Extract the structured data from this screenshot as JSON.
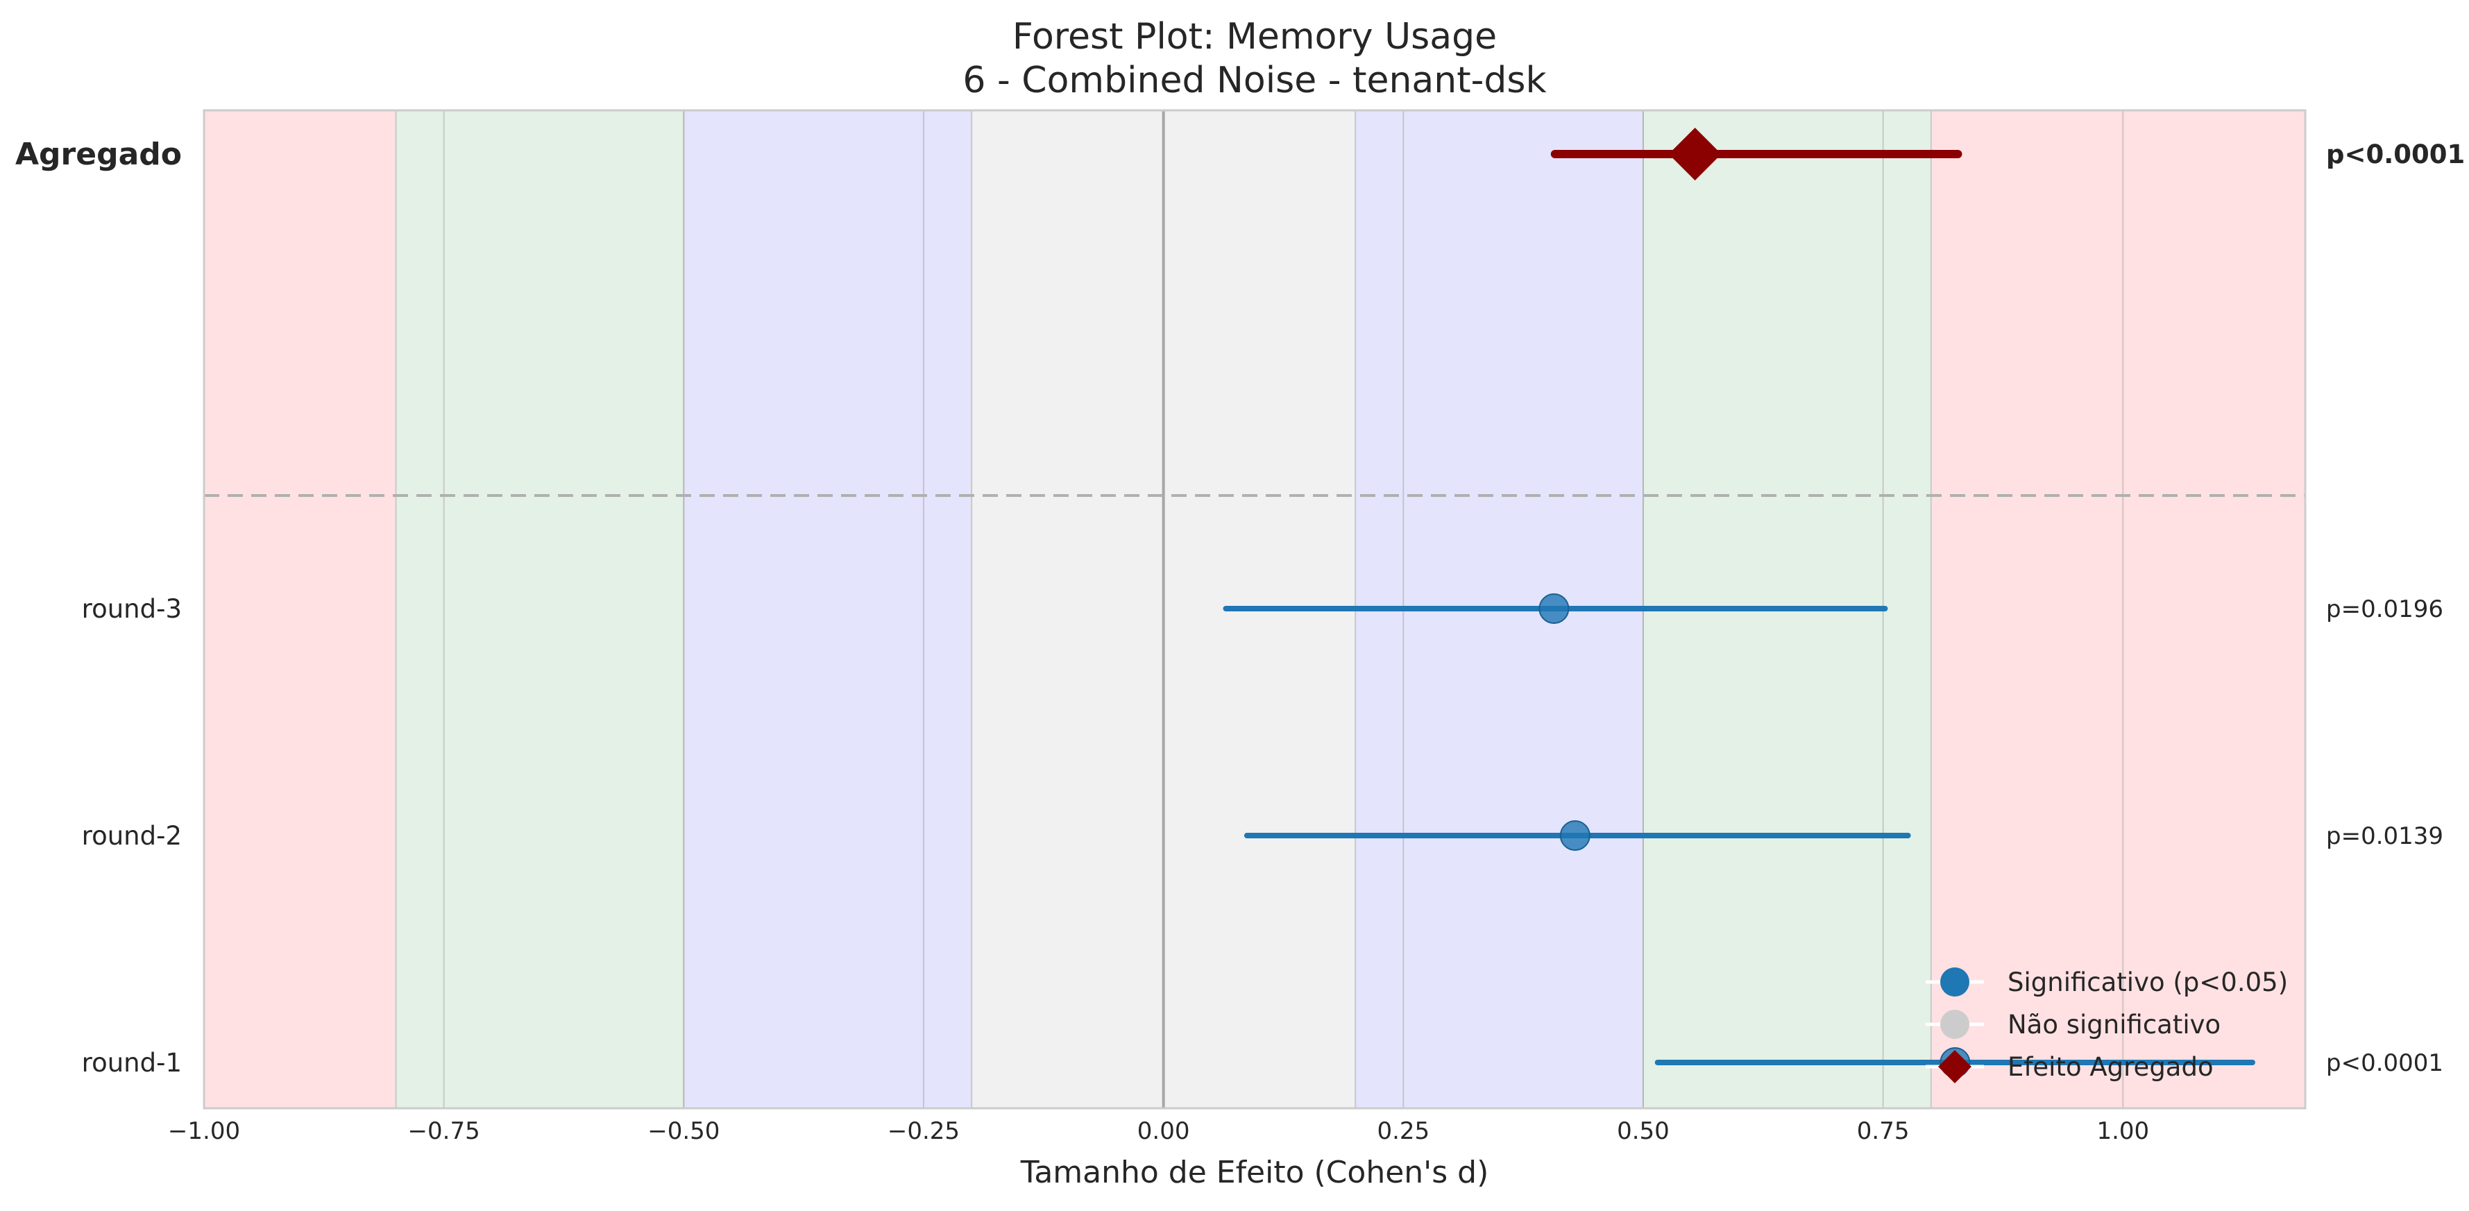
{
  "chart_data": {
    "type": "forest",
    "title": "Forest Plot: Memory Usage",
    "subtitle": "6 - Combined Noise - tenant-dsk",
    "xlabel": "Tamanho de Efeito (Cohen's d)",
    "xlim": [
      -1.0,
      1.19
    ],
    "xticks": [
      -1.0,
      -0.75,
      -0.5,
      -0.25,
      0.0,
      0.25,
      0.5,
      0.75,
      1.0
    ],
    "xtick_labels": [
      "−1.00",
      "−0.75",
      "−0.50",
      "−0.25",
      "0.00",
      "0.25",
      "0.50",
      "0.75",
      "1.00"
    ],
    "zones": [
      {
        "from": -1.19,
        "to": -0.8,
        "color": "#ffe1e3"
      },
      {
        "from": -0.8,
        "to": -0.5,
        "color": "#e4f1e6"
      },
      {
        "from": -0.5,
        "to": -0.2,
        "color": "#e4e4fd"
      },
      {
        "from": -0.2,
        "to": 0.2,
        "color": "#f1f1f1"
      },
      {
        "from": 0.2,
        "to": 0.5,
        "color": "#e4e4fd"
      },
      {
        "from": 0.5,
        "to": 0.8,
        "color": "#e4f1e6"
      },
      {
        "from": 0.8,
        "to": 1.19,
        "color": "#ffe1e3"
      }
    ],
    "rounds": [
      {
        "label": "round-3",
        "effect": 0.407,
        "ci_low": 0.065,
        "ci_high": 0.752,
        "p_text": "p=0.0196",
        "significant": true
      },
      {
        "label": "round-2",
        "effect": 0.429,
        "ci_low": 0.087,
        "ci_high": 0.776,
        "p_text": "p=0.0139",
        "significant": true
      },
      {
        "label": "round-1",
        "effect": 0.825,
        "ci_low": 0.515,
        "ci_high": 1.135,
        "p_text": "p<0.0001",
        "significant": true
      }
    ],
    "aggregate": {
      "label": "Agregado",
      "effect": 0.554,
      "ci_low": 0.408,
      "ci_high": 0.828,
      "p_text": "p<0.0001"
    },
    "legend": {
      "position": "lower-right",
      "entries": [
        {
          "label": "Significativo (p<0.05)",
          "marker": "circle",
          "color": "#1f77b4"
        },
        {
          "label": "Não significativo",
          "marker": "circle",
          "color": "#cccccc"
        },
        {
          "label": "Efeito Agregado",
          "marker": "diamond",
          "color": "#8b0000"
        }
      ]
    },
    "colors": {
      "significant": "#1f77b4",
      "not_significant": "#cccccc",
      "aggregate": "#8b0000",
      "zero_line": "#a6a6a6",
      "separator": "#b0b0b0"
    }
  }
}
